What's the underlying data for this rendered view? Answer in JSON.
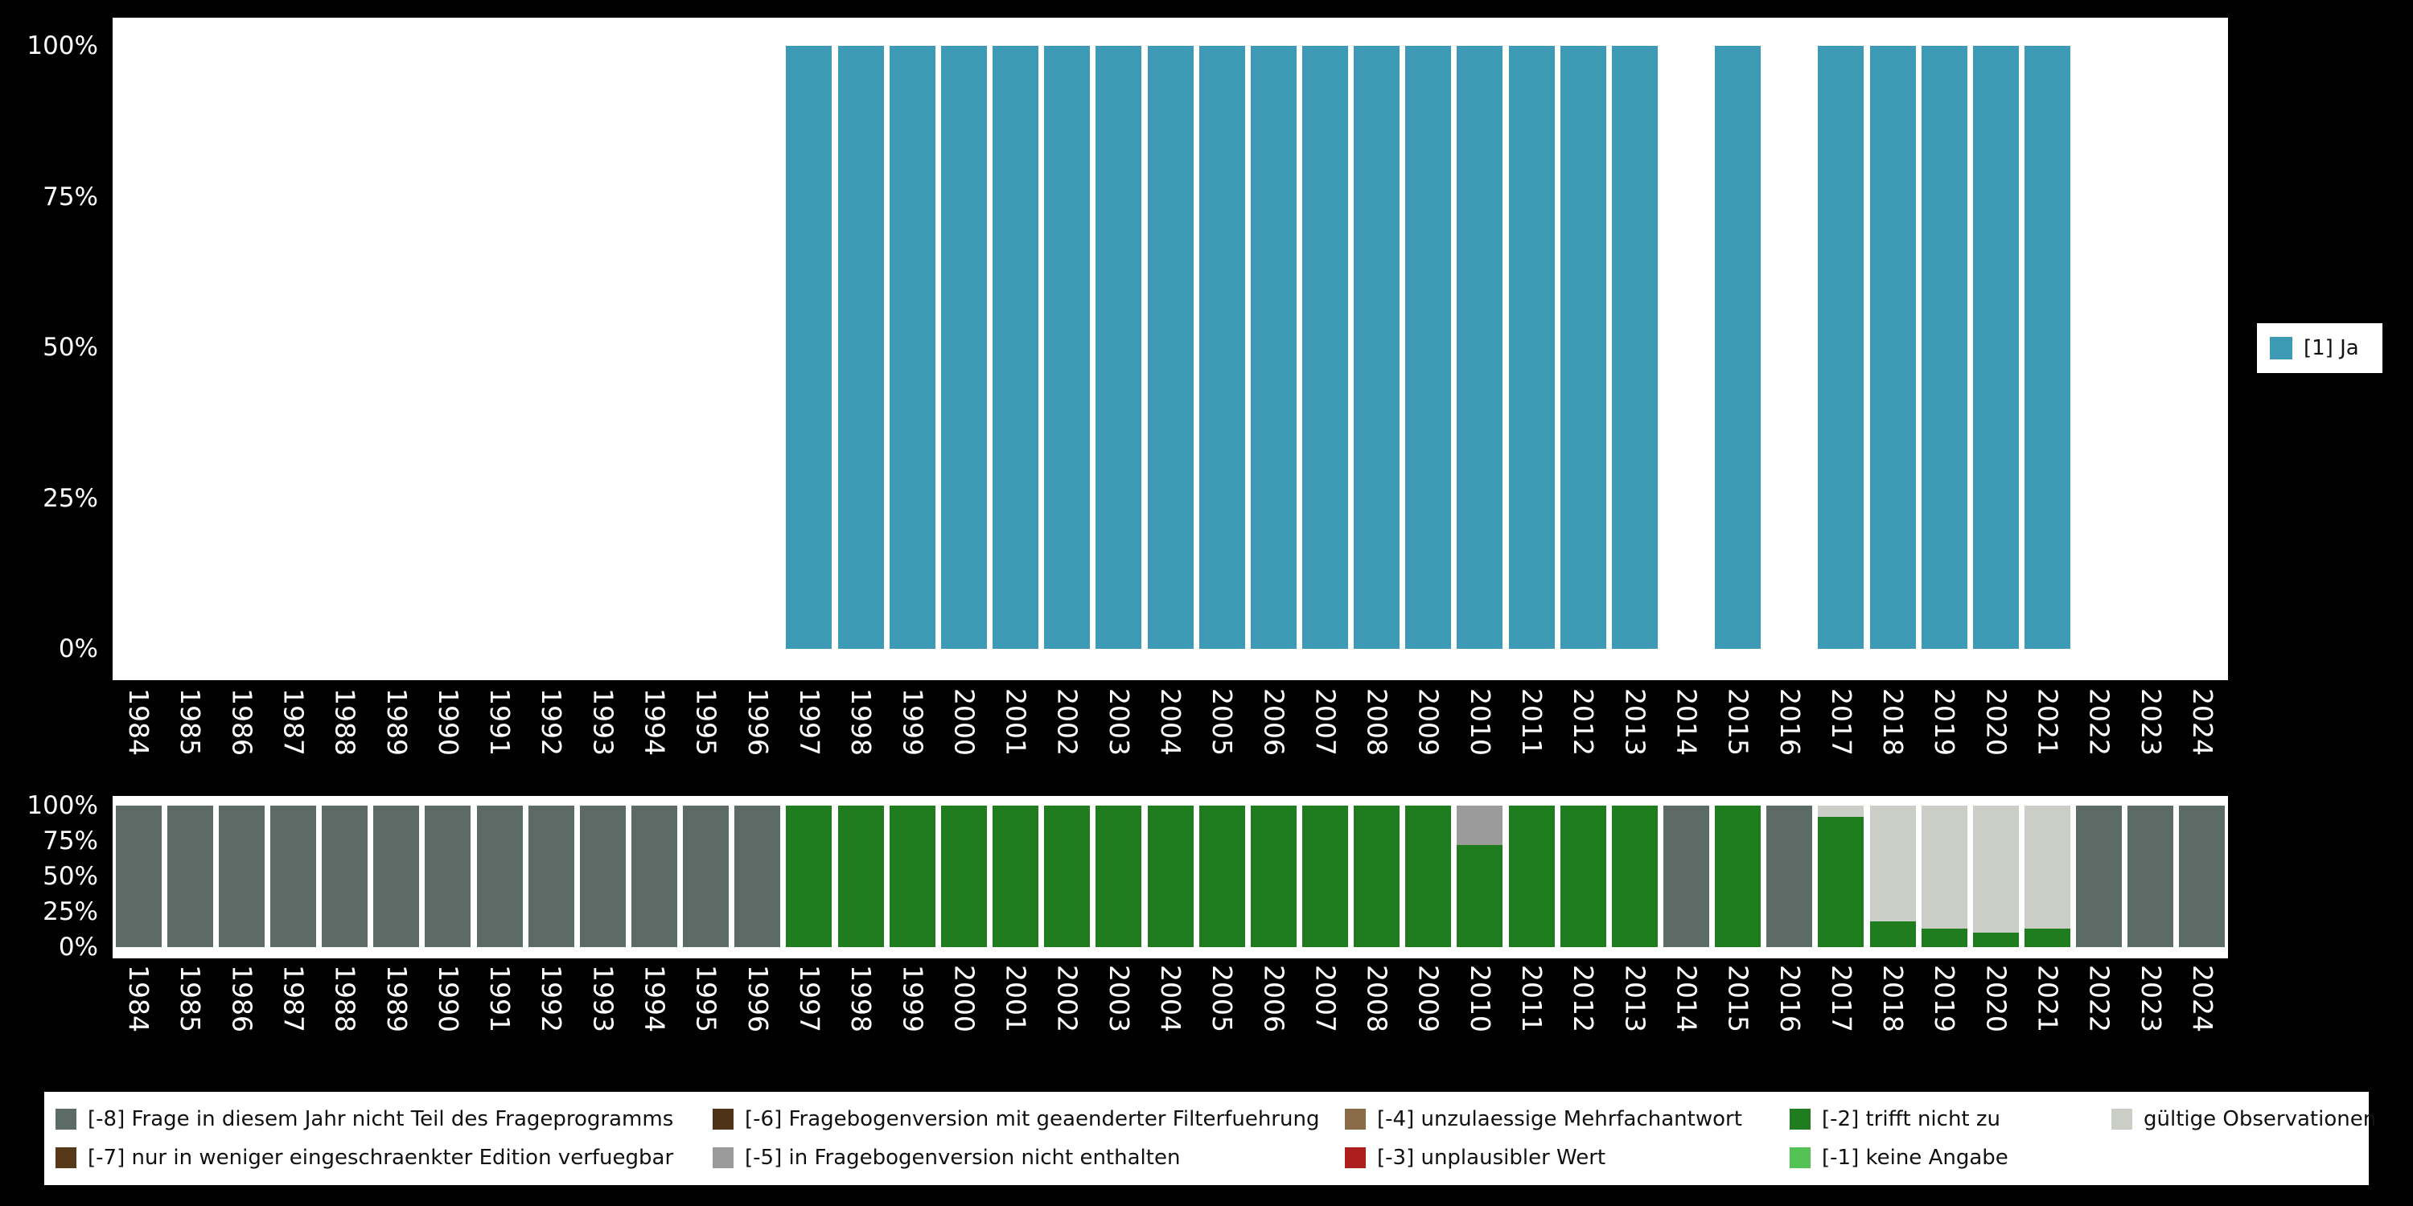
{
  "colors": {
    "background": "#000000",
    "panel": "#FFFFFF",
    "axis_text": "#FFFFFF"
  },
  "top_legend": {
    "label": "[1] Ja",
    "color": "#3D9AB5"
  },
  "axes": {
    "yticks": [
      {
        "label": "100%",
        "value": 100
      },
      {
        "label": "75%",
        "value": 75
      },
      {
        "label": "50%",
        "value": 50
      },
      {
        "label": "25%",
        "value": 25
      },
      {
        "label": "0%",
        "value": 0
      }
    ]
  },
  "missing_categories": {
    "-8": {
      "label": "[-8] Frage in diesem Jahr nicht Teil des Frageprogramms",
      "color": "#5C6B66"
    },
    "-7": {
      "label": "[-7] nur in weniger eingeschraenkter Edition verfuegbar",
      "color": "#573818"
    },
    "-6": {
      "label": "[-6] Fragebogenversion mit geaenderter Filterfuehrung",
      "color": "#4E3318"
    },
    "-5": {
      "label": "[-5] in Fragebogenversion nicht enthalten",
      "color": "#9B9B9B"
    },
    "-4": {
      "label": "[-4] unzulaessige Mehrfachantwort",
      "color": "#8A6D48"
    },
    "-3": {
      "label": "[-3] unplausibler Wert",
      "color": "#AC1F1C"
    },
    "-2": {
      "label": "[-2] trifft nicht zu",
      "color": "#1F7D1F"
    },
    "-1": {
      "label": "[-1] keine Angabe",
      "color": "#54C254"
    },
    "valid": {
      "label": "gültige Observationen",
      "color": "#CBCEC7"
    }
  },
  "missing_legend": {
    "columns": 5,
    "items_order": [
      "-8",
      "-6",
      "-4",
      "-2",
      "valid",
      "-7",
      "-5",
      "-3",
      "-1"
    ]
  },
  "chart_data": [
    {
      "id": "frequencies",
      "type": "bar",
      "title": "",
      "xlabel": "",
      "ylabel": "",
      "ylim": [
        0,
        100
      ],
      "grid": false,
      "legend_position": "right",
      "series_name": "[1] Ja",
      "bar_color": "#3D9AB5",
      "x": [
        "1984",
        "1985",
        "1986",
        "1987",
        "1988",
        "1989",
        "1990",
        "1991",
        "1992",
        "1993",
        "1994",
        "1995",
        "1996",
        "1997",
        "1998",
        "1999",
        "2000",
        "2001",
        "2002",
        "2003",
        "2004",
        "2005",
        "2006",
        "2007",
        "2008",
        "2009",
        "2010",
        "2011",
        "2012",
        "2013",
        "2014",
        "2015",
        "2016",
        "2017",
        "2018",
        "2019",
        "2020",
        "2021",
        "2022",
        "2023",
        "2024"
      ],
      "values": [
        null,
        null,
        null,
        null,
        null,
        null,
        null,
        null,
        null,
        null,
        null,
        null,
        null,
        100,
        100,
        100,
        100,
        100,
        100,
        100,
        100,
        100,
        100,
        100,
        100,
        100,
        100,
        100,
        100,
        100,
        null,
        100,
        null,
        100,
        100,
        100,
        100,
        100,
        null,
        null,
        null
      ]
    },
    {
      "id": "missings",
      "type": "stacked-bar-percent",
      "title": "",
      "xlabel": "",
      "ylabel": "",
      "ylim": [
        0,
        100
      ],
      "x": [
        "1984",
        "1985",
        "1986",
        "1987",
        "1988",
        "1989",
        "1990",
        "1991",
        "1992",
        "1993",
        "1994",
        "1995",
        "1996",
        "1997",
        "1998",
        "1999",
        "2000",
        "2001",
        "2002",
        "2003",
        "2004",
        "2005",
        "2006",
        "2007",
        "2008",
        "2009",
        "2010",
        "2011",
        "2012",
        "2013",
        "2014",
        "2015",
        "2016",
        "2017",
        "2018",
        "2019",
        "2020",
        "2021",
        "2022",
        "2023",
        "2024"
      ],
      "stacks": [
        [
          [
            "-8",
            100
          ]
        ],
        [
          [
            "-8",
            100
          ]
        ],
        [
          [
            "-8",
            100
          ]
        ],
        [
          [
            "-8",
            100
          ]
        ],
        [
          [
            "-8",
            100
          ]
        ],
        [
          [
            "-8",
            100
          ]
        ],
        [
          [
            "-8",
            100
          ]
        ],
        [
          [
            "-8",
            100
          ]
        ],
        [
          [
            "-8",
            100
          ]
        ],
        [
          [
            "-8",
            100
          ]
        ],
        [
          [
            "-8",
            100
          ]
        ],
        [
          [
            "-8",
            100
          ]
        ],
        [
          [
            "-8",
            100
          ]
        ],
        [
          [
            "-2",
            100
          ]
        ],
        [
          [
            "-2",
            100
          ]
        ],
        [
          [
            "-2",
            100
          ]
        ],
        [
          [
            "-2",
            100
          ]
        ],
        [
          [
            "-2",
            100
          ]
        ],
        [
          [
            "-2",
            100
          ]
        ],
        [
          [
            "-2",
            100
          ]
        ],
        [
          [
            "-2",
            100
          ]
        ],
        [
          [
            "-2",
            100
          ]
        ],
        [
          [
            "-2",
            100
          ]
        ],
        [
          [
            "-2",
            100
          ]
        ],
        [
          [
            "-2",
            100
          ]
        ],
        [
          [
            "-2",
            100
          ]
        ],
        [
          [
            "-2",
            72
          ],
          [
            "-5",
            28
          ]
        ],
        [
          [
            "-2",
            100
          ]
        ],
        [
          [
            "-2",
            100
          ]
        ],
        [
          [
            "-2",
            100
          ]
        ],
        [
          [
            "-8",
            100
          ]
        ],
        [
          [
            "-2",
            100
          ]
        ],
        [
          [
            "-8",
            100
          ]
        ],
        [
          [
            "-2",
            92
          ],
          [
            "valid",
            8
          ]
        ],
        [
          [
            "-2",
            18
          ],
          [
            "valid",
            82
          ]
        ],
        [
          [
            "-2",
            13
          ],
          [
            "valid",
            87
          ]
        ],
        [
          [
            "-2",
            10
          ],
          [
            "valid",
            90
          ]
        ],
        [
          [
            "-2",
            13
          ],
          [
            "valid",
            87
          ]
        ],
        [
          [
            "-8",
            100
          ]
        ],
        [
          [
            "-8",
            100
          ]
        ],
        [
          [
            "-8",
            100
          ]
        ]
      ]
    }
  ]
}
